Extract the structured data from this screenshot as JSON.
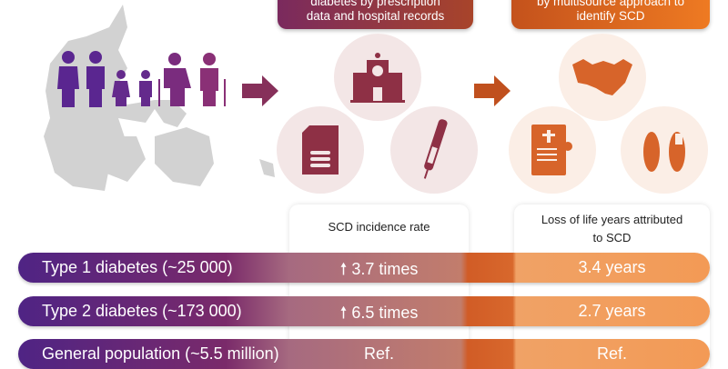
{
  "top_boxes": [
    {
      "lines": [
        "diabetes by prescription",
        "data and hospital records"
      ],
      "color_from": "#7a2a5e",
      "color_to": "#a8442a"
    },
    {
      "lines": [
        "by multisource approach to",
        "identify SCD"
      ],
      "color_from": "#c4521c",
      "color_to": "#ee7a22"
    }
  ],
  "icons": {
    "population": [
      "woman-icon",
      "man-icon",
      "girl-icon",
      "boy-icon",
      "elderly-woman-icon",
      "elderly-man-icon"
    ],
    "step1": [
      "hospital-icon",
      "prescription-document-icon",
      "insulin-pen-icon"
    ],
    "step2": [
      "handshake-icon",
      "death-certificate-icon",
      "toe-tag-feet-icon"
    ]
  },
  "table": {
    "headers": [
      "SCD incidence rate",
      "Loss of life years attributed",
      "to SCD"
    ],
    "rows": [
      {
        "label": "Type 1 diabetes (~25 000)",
        "incidence": "3.7 times",
        "incidence_arrow": "up",
        "life_years": "3.4 years"
      },
      {
        "label": "Type 2 diabetes (~173 000)",
        "incidence": "6.5 times",
        "incidence_arrow": "up",
        "life_years": "2.7 years"
      },
      {
        "label": "General population (~5.5 million)",
        "incidence": "Ref.",
        "life_years": "Ref."
      }
    ]
  },
  "colors": {
    "purple": "#5b2a86",
    "maroon": "#8e3045",
    "orange": "#e0702a",
    "map": "#d2d2d2"
  }
}
